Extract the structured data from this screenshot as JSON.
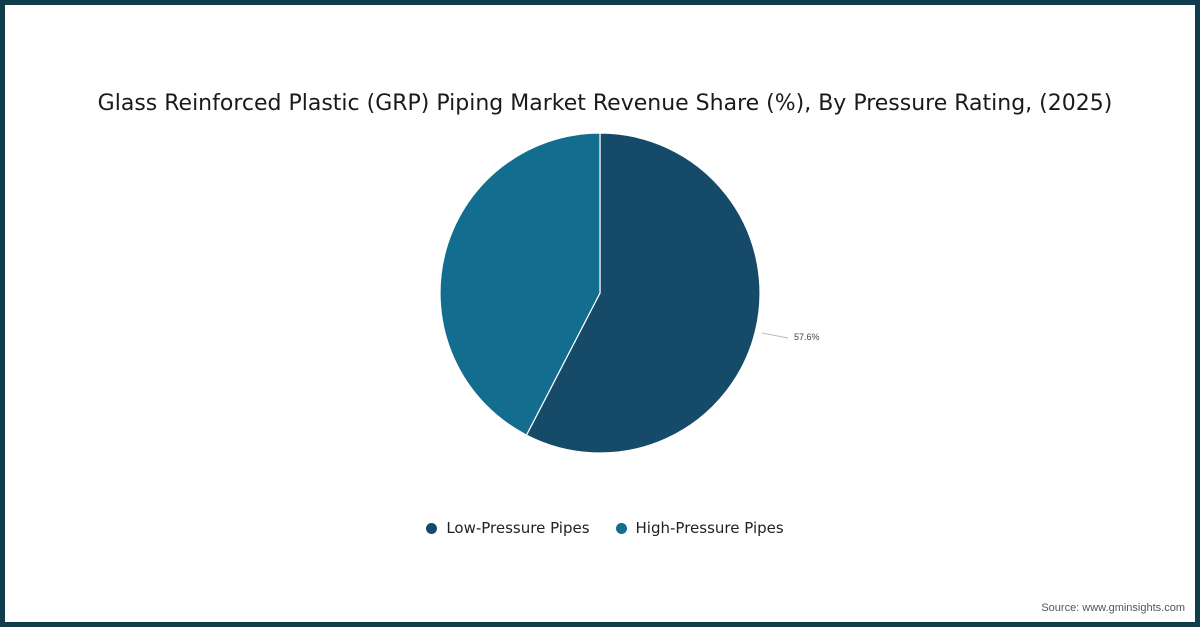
{
  "chart_data": {
    "type": "pie",
    "title": "Glass Reinforced Plastic (GRP) Piping Market Revenue Share (%), By Pressure Rating, (2025)",
    "categories": [
      "Low-Pressure Pipes",
      "High-Pressure Pipes"
    ],
    "values": [
      57.6,
      42.4
    ],
    "colors": [
      "#154a69",
      "#126d8e"
    ],
    "data_labels": [
      "57.6%",
      ""
    ],
    "legend_position": "bottom"
  },
  "title": "Glass Reinforced Plastic (GRP) Piping Market Revenue Share (%), By Pressure Rating, (2025)",
  "slice_label": "57.6%",
  "legend": [
    {
      "label": "Low-Pressure Pipes",
      "color": "#154a69"
    },
    {
      "label": "High-Pressure Pipes",
      "color": "#126d8e"
    }
  ],
  "source": "Source: www.gminsights.com"
}
